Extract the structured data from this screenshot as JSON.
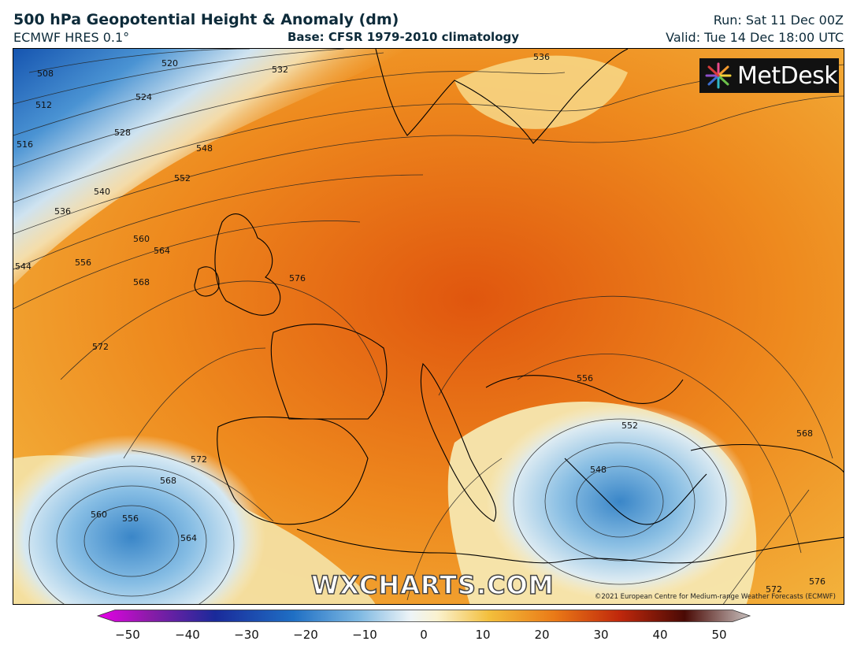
{
  "header": {
    "title": "500 hPa Geopotential Height & Anomaly (dm)",
    "model": "ECMWF HRES 0.1°",
    "base": "Base: CFSR 1979-2010 climatology",
    "run": "Run: Sat 11 Dec 00Z",
    "valid": "Valid: Tue 14 Dec 18:00 UTC"
  },
  "logo": {
    "text": "MetDesk"
  },
  "watermark": "WXCHARTS.COM",
  "copyright": "©2021 European Centre for Medium-range Weather Forecasts (ECMWF)",
  "contour_labels": [
    "508",
    "512",
    "516",
    "520",
    "524",
    "528",
    "532",
    "536",
    "540",
    "544",
    "548",
    "552",
    "556",
    "560",
    "564",
    "568",
    "572",
    "576",
    "536",
    "556",
    "552",
    "548",
    "568",
    "572",
    "576",
    "560",
    "556",
    "564",
    "568",
    "572"
  ],
  "colorbar": {
    "ticks": [
      "−50",
      "−40",
      "−30",
      "−20",
      "−10",
      "0",
      "10",
      "20",
      "30",
      "40",
      "50"
    ]
  },
  "colors": {
    "strong_negative": "#1f5fb5",
    "negative": "#6fb0de",
    "neutral": "#fbf4df",
    "positive": "#f0a030",
    "strong_positive": "#d94a0b"
  }
}
